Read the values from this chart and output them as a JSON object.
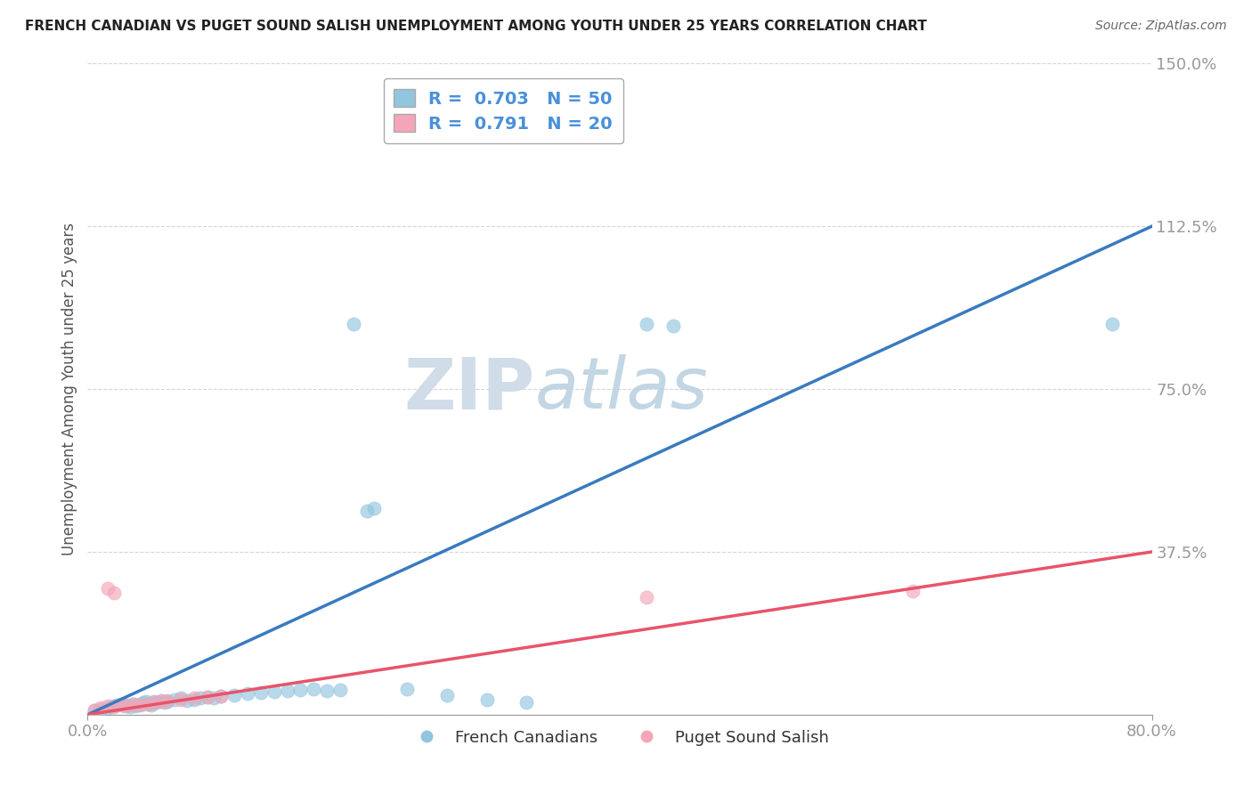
{
  "title": "FRENCH CANADIAN VS PUGET SOUND SALISH UNEMPLOYMENT AMONG YOUTH UNDER 25 YEARS CORRELATION CHART",
  "source": "Source: ZipAtlas.com",
  "ylabel": "Unemployment Among Youth under 25 years",
  "xlim": [
    0,
    0.8
  ],
  "ylim": [
    0,
    1.5
  ],
  "yticks": [
    0.0,
    0.375,
    0.75,
    1.125,
    1.5
  ],
  "ytick_labels": [
    "",
    "37.5%",
    "75.0%",
    "112.5%",
    "150.0%"
  ],
  "blue_color": "#92c5de",
  "pink_color": "#f4a6b8",
  "blue_line_color": "#3a7abf",
  "pink_line_color": "#e8546a",
  "blue_R": 0.703,
  "blue_N": 50,
  "pink_R": 0.791,
  "pink_N": 20,
  "watermark_ZIP": "ZIP",
  "watermark_atlas": "atlas",
  "legend_label_blue": "French Canadians",
  "legend_label_pink": "Puget Sound Salish",
  "background_color": "#ffffff",
  "grid_color": "#cccccc",
  "blue_scatter_x": [
    0.005,
    0.01,
    0.015,
    0.018,
    0.02,
    0.022,
    0.025,
    0.028,
    0.03,
    0.032,
    0.034,
    0.036,
    0.038,
    0.04,
    0.042,
    0.044,
    0.046,
    0.048,
    0.05,
    0.052,
    0.055,
    0.058,
    0.06,
    0.065,
    0.07,
    0.075,
    0.08,
    0.085,
    0.09,
    0.095,
    0.1,
    0.11,
    0.12,
    0.13,
    0.14,
    0.15,
    0.16,
    0.17,
    0.18,
    0.19,
    0.21,
    0.215,
    0.24,
    0.27,
    0.3,
    0.33,
    0.42,
    0.44,
    0.77,
    0.2
  ],
  "blue_scatter_y": [
    0.01,
    0.012,
    0.015,
    0.018,
    0.02,
    0.022,
    0.025,
    0.02,
    0.022,
    0.018,
    0.025,
    0.02,
    0.022,
    0.025,
    0.028,
    0.03,
    0.025,
    0.022,
    0.03,
    0.028,
    0.032,
    0.028,
    0.03,
    0.035,
    0.038,
    0.032,
    0.035,
    0.038,
    0.04,
    0.038,
    0.042,
    0.045,
    0.048,
    0.05,
    0.052,
    0.055,
    0.058,
    0.06,
    0.055,
    0.058,
    0.47,
    0.475,
    0.06,
    0.045,
    0.035,
    0.028,
    0.9,
    0.895,
    0.9,
    0.9
  ],
  "pink_scatter_x": [
    0.005,
    0.01,
    0.015,
    0.02,
    0.025,
    0.03,
    0.035,
    0.04,
    0.045,
    0.05,
    0.055,
    0.06,
    0.07,
    0.08,
    0.09,
    0.1,
    0.42,
    0.62,
    0.02,
    0.015
  ],
  "pink_scatter_y": [
    0.01,
    0.015,
    0.02,
    0.018,
    0.022,
    0.02,
    0.025,
    0.022,
    0.025,
    0.028,
    0.03,
    0.032,
    0.035,
    0.038,
    0.04,
    0.042,
    0.27,
    0.285,
    0.28,
    0.29
  ]
}
